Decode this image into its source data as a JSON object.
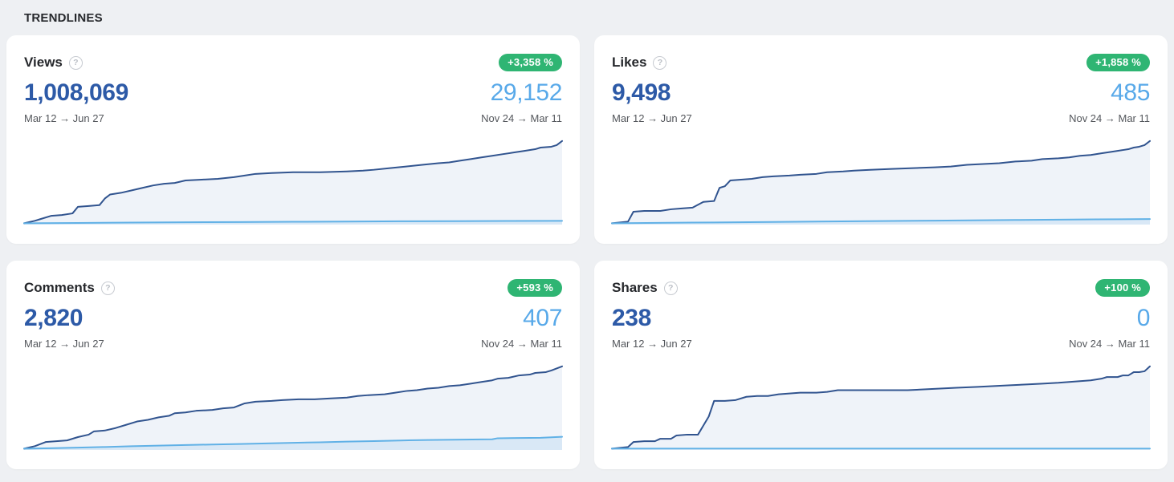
{
  "page": {
    "section_title": "TRENDLINES"
  },
  "colors": {
    "page_bg": "#EEF0F3",
    "card_bg": "#FFFFFF",
    "badge_green": "#2FB573",
    "primary_number_blue": "#2D5AA7",
    "secondary_number_blue": "#58A9E9",
    "line_dark_navy": "#31548F",
    "line_light_blue": "#61B1E6",
    "area_fill": "#EFF3F9",
    "date_text_gray": "#54575C",
    "title_text": "#25272B"
  },
  "cards": [
    {
      "title": "Views",
      "help_glyph": "?",
      "badge": "+3,358 %",
      "primary_value": "1,008,069",
      "secondary_value": "29,152",
      "primary_range": "Mar 12 → Jun 27",
      "secondary_range": "Nov 24 → Mar 11"
    },
    {
      "title": "Likes",
      "help_glyph": "?",
      "badge": "+1,858 %",
      "primary_value": "9,498",
      "secondary_value": "485",
      "primary_range": "Mar 12 → Jun 27",
      "secondary_range": "Nov 24 → Mar 11"
    },
    {
      "title": "Comments",
      "help_glyph": "?",
      "badge": "+593 %",
      "primary_value": "2,820",
      "secondary_value": "407",
      "primary_range": "Mar 12 → Jun 27",
      "secondary_range": "Nov 24 → Mar 11"
    },
    {
      "title": "Shares",
      "help_glyph": "?",
      "badge": "+100 %",
      "primary_value": "238",
      "secondary_value": "0",
      "primary_range": "Mar 12 → Jun 27",
      "secondary_range": "Nov 24 → Mar 11"
    }
  ],
  "chart_data": [
    {
      "type": "area",
      "title": "Views trendline",
      "x": "time over comparison periods (no axis labels shown)",
      "y_units": "percent of current-period cumulative total",
      "grid": false,
      "legend": false,
      "series": [
        {
          "name": "Mar 12 → Jun 27 (current)",
          "final_value": 1008069,
          "color": "#31548F",
          "fill": "#EFF3F9",
          "points": [
            [
              0,
              0
            ],
            [
              2,
              3
            ],
            [
              3,
              5
            ],
            [
              5,
              9
            ],
            [
              7,
              10
            ],
            [
              9,
              12
            ],
            [
              10,
              20
            ],
            [
              12,
              21
            ],
            [
              14,
              22
            ],
            [
              15,
              30
            ],
            [
              16,
              35
            ],
            [
              18,
              37
            ],
            [
              20,
              40
            ],
            [
              22,
              43
            ],
            [
              24,
              46
            ],
            [
              26,
              48
            ],
            [
              28,
              49
            ],
            [
              30,
              52
            ],
            [
              33,
              53
            ],
            [
              36,
              54
            ],
            [
              39,
              56
            ],
            [
              41,
              58
            ],
            [
              43,
              60
            ],
            [
              46,
              61
            ],
            [
              50,
              62
            ],
            [
              55,
              62
            ],
            [
              60,
              63
            ],
            [
              63,
              64
            ],
            [
              65,
              65
            ],
            [
              68,
              67
            ],
            [
              71,
              69
            ],
            [
              74,
              71
            ],
            [
              77,
              73
            ],
            [
              79,
              74
            ],
            [
              81,
              76
            ],
            [
              83,
              78
            ],
            [
              85,
              80
            ],
            [
              87,
              82
            ],
            [
              89,
              84
            ],
            [
              91,
              86
            ],
            [
              93,
              88
            ],
            [
              95,
              90
            ],
            [
              96,
              92
            ],
            [
              98,
              93
            ],
            [
              99,
              95
            ],
            [
              100,
              100
            ]
          ]
        },
        {
          "name": "Nov 24 → Mar 11 (previous)",
          "final_value": 29152,
          "color": "#61B1E6",
          "fill": "rgba(97,177,230,0.15)",
          "points": [
            [
              0,
              0
            ],
            [
              10,
              0.4
            ],
            [
              20,
              0.8
            ],
            [
              30,
              1.2
            ],
            [
              40,
              1.5
            ],
            [
              50,
              1.8
            ],
            [
              60,
              2.1
            ],
            [
              70,
              2.4
            ],
            [
              80,
              2.6
            ],
            [
              90,
              2.8
            ],
            [
              100,
              2.9
            ]
          ]
        }
      ]
    },
    {
      "type": "area",
      "title": "Likes trendline",
      "x": "time over comparison periods (no axis labels shown)",
      "y_units": "percent of current-period cumulative total",
      "grid": false,
      "legend": false,
      "series": [
        {
          "name": "Mar 12 → Jun 27 (current)",
          "final_value": 9498,
          "color": "#31548F",
          "fill": "#EFF3F9",
          "points": [
            [
              0,
              0
            ],
            [
              3,
              2
            ],
            [
              4,
              14
            ],
            [
              6,
              15
            ],
            [
              9,
              15
            ],
            [
              11,
              17
            ],
            [
              13,
              18
            ],
            [
              15,
              19
            ],
            [
              17,
              26
            ],
            [
              19,
              27
            ],
            [
              20,
              43
            ],
            [
              21,
              45
            ],
            [
              22,
              52
            ],
            [
              24,
              53
            ],
            [
              26,
              54
            ],
            [
              28,
              56
            ],
            [
              30,
              57
            ],
            [
              33,
              58
            ],
            [
              35,
              59
            ],
            [
              38,
              60
            ],
            [
              40,
              62
            ],
            [
              43,
              63
            ],
            [
              45,
              64
            ],
            [
              48,
              65
            ],
            [
              52,
              66
            ],
            [
              56,
              67
            ],
            [
              60,
              68
            ],
            [
              63,
              69
            ],
            [
              66,
              71
            ],
            [
              69,
              72
            ],
            [
              72,
              73
            ],
            [
              75,
              75
            ],
            [
              78,
              76
            ],
            [
              80,
              78
            ],
            [
              83,
              79
            ],
            [
              85,
              80
            ],
            [
              87,
              82
            ],
            [
              89,
              83
            ],
            [
              91,
              85
            ],
            [
              93,
              87
            ],
            [
              95,
              89
            ],
            [
              96,
              90
            ],
            [
              97,
              92
            ],
            [
              98,
              93
            ],
            [
              99,
              95
            ],
            [
              100,
              100
            ]
          ]
        },
        {
          "name": "Nov 24 → Mar 11 (previous)",
          "final_value": 485,
          "color": "#61B1E6",
          "fill": "rgba(97,177,230,0.15)",
          "points": [
            [
              0,
              0
            ],
            [
              15,
              0.8
            ],
            [
              30,
              1.6
            ],
            [
              45,
              2.5
            ],
            [
              60,
              3.2
            ],
            [
              75,
              4
            ],
            [
              90,
              4.7
            ],
            [
              100,
              5.1
            ]
          ]
        }
      ]
    },
    {
      "type": "area",
      "title": "Comments trendline",
      "x": "time over comparison periods (no axis labels shown)",
      "y_units": "percent of current-period cumulative total",
      "grid": false,
      "legend": false,
      "series": [
        {
          "name": "Mar 12 → Jun 27 (current)",
          "final_value": 2820,
          "color": "#31548F",
          "fill": "#EFF3F9",
          "points": [
            [
              0,
              0
            ],
            [
              2,
              3
            ],
            [
              4,
              8
            ],
            [
              6,
              9
            ],
            [
              8,
              10
            ],
            [
              10,
              14
            ],
            [
              12,
              17
            ],
            [
              13,
              21
            ],
            [
              15,
              22
            ],
            [
              17,
              25
            ],
            [
              19,
              29
            ],
            [
              21,
              33
            ],
            [
              23,
              35
            ],
            [
              25,
              38
            ],
            [
              27,
              40
            ],
            [
              28,
              43
            ],
            [
              30,
              44
            ],
            [
              32,
              46
            ],
            [
              35,
              47
            ],
            [
              37,
              49
            ],
            [
              39,
              50
            ],
            [
              41,
              55
            ],
            [
              43,
              57
            ],
            [
              46,
              58
            ],
            [
              48,
              59
            ],
            [
              51,
              60
            ],
            [
              54,
              60
            ],
            [
              57,
              61
            ],
            [
              60,
              62
            ],
            [
              62,
              64
            ],
            [
              64,
              65
            ],
            [
              67,
              66
            ],
            [
              69,
              68
            ],
            [
              71,
              70
            ],
            [
              73,
              71
            ],
            [
              75,
              73
            ],
            [
              77,
              74
            ],
            [
              79,
              76
            ],
            [
              81,
              77
            ],
            [
              83,
              79
            ],
            [
              85,
              81
            ],
            [
              87,
              83
            ],
            [
              88,
              85
            ],
            [
              90,
              86
            ],
            [
              92,
              89
            ],
            [
              94,
              90
            ],
            [
              95,
              92
            ],
            [
              97,
              93
            ],
            [
              98,
              95
            ],
            [
              100,
              100
            ]
          ]
        },
        {
          "name": "Nov 24 → Mar 11 (previous)",
          "final_value": 407,
          "color": "#61B1E6",
          "fill": "rgba(97,177,230,0.15)",
          "points": [
            [
              0,
              0
            ],
            [
              5,
              0.5
            ],
            [
              10,
              1.2
            ],
            [
              15,
              2
            ],
            [
              20,
              2.9
            ],
            [
              25,
              3.6
            ],
            [
              30,
              4.4
            ],
            [
              35,
              5
            ],
            [
              40,
              5.6
            ],
            [
              45,
              6.3
            ],
            [
              50,
              7.1
            ],
            [
              55,
              7.7
            ],
            [
              60,
              8.5
            ],
            [
              65,
              9.2
            ],
            [
              70,
              9.9
            ],
            [
              75,
              10.5
            ],
            [
              80,
              10.9
            ],
            [
              85,
              11.2
            ],
            [
              87,
              11.3
            ],
            [
              88,
              12.6
            ],
            [
              92,
              12.9
            ],
            [
              96,
              13.2
            ],
            [
              100,
              14.4
            ]
          ]
        }
      ]
    },
    {
      "type": "area",
      "title": "Shares trendline",
      "x": "time over comparison periods (no axis labels shown)",
      "y_units": "percent of current-period cumulative total",
      "grid": false,
      "legend": false,
      "series": [
        {
          "name": "Mar 12 → Jun 27 (current)",
          "final_value": 238,
          "color": "#31548F",
          "fill": "#EFF3F9",
          "points": [
            [
              0,
              0
            ],
            [
              3,
              2
            ],
            [
              4,
              8
            ],
            [
              6,
              9
            ],
            [
              8,
              9
            ],
            [
              9,
              12
            ],
            [
              11,
              12
            ],
            [
              12,
              16
            ],
            [
              14,
              17
            ],
            [
              16,
              17
            ],
            [
              17,
              28
            ],
            [
              18,
              39
            ],
            [
              19,
              58
            ],
            [
              21,
              58
            ],
            [
              23,
              59
            ],
            [
              25,
              63
            ],
            [
              27,
              64
            ],
            [
              29,
              64
            ],
            [
              31,
              66
            ],
            [
              33,
              67
            ],
            [
              35,
              68
            ],
            [
              38,
              68
            ],
            [
              40,
              69
            ],
            [
              42,
              71
            ],
            [
              45,
              71
            ],
            [
              50,
              71
            ],
            [
              55,
              71
            ],
            [
              58,
              72
            ],
            [
              61,
              73
            ],
            [
              64,
              74
            ],
            [
              68,
              75
            ],
            [
              71,
              76
            ],
            [
              74,
              77
            ],
            [
              77,
              78
            ],
            [
              80,
              79
            ],
            [
              83,
              80
            ],
            [
              85,
              81
            ],
            [
              87,
              82
            ],
            [
              89,
              83
            ],
            [
              91,
              85
            ],
            [
              92,
              87
            ],
            [
              94,
              87
            ],
            [
              95,
              89
            ],
            [
              96,
              89
            ],
            [
              97,
              93
            ],
            [
              98,
              93
            ],
            [
              99,
              94
            ],
            [
              100,
              100
            ]
          ]
        },
        {
          "name": "Nov 24 → Mar 11 (previous)",
          "final_value": 0,
          "color": "#61B1E6",
          "fill": "none",
          "points": [
            [
              0,
              0
            ],
            [
              100,
              0
            ]
          ]
        }
      ]
    }
  ]
}
